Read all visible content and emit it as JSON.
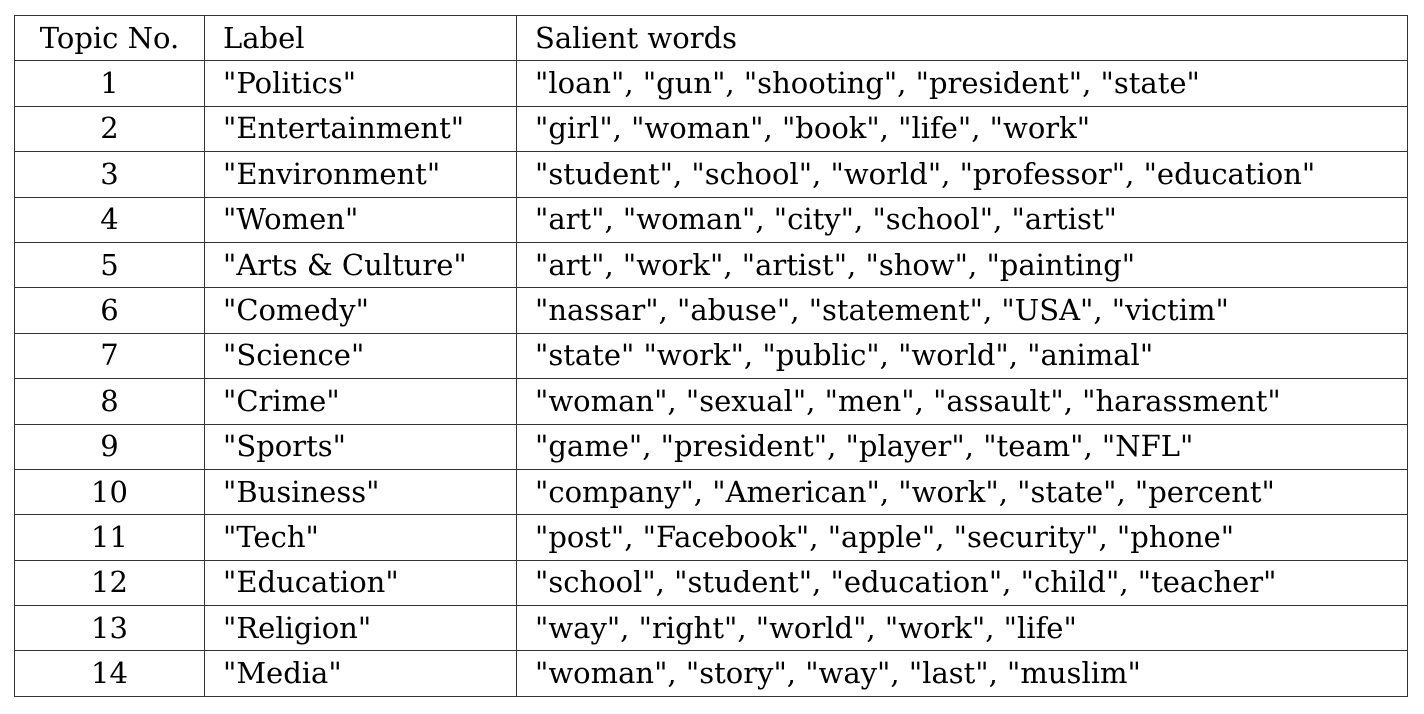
{
  "headers": [
    "Topic No.",
    "Label",
    "Salient words"
  ],
  "rows": [
    {
      "no": "1",
      "label": "\"Politics\"",
      "words": "\"loan\", \"gun\", \"shooting\", \"president\", \"state\""
    },
    {
      "no": "2",
      "label": "\"Entertainment\"",
      "words": "\"girl\", \"woman\", \"book\", \"life\", \"work\""
    },
    {
      "no": "3",
      "label": "\"Environment\"",
      "words": "\"student\", \"school\", \"world\", \"professor\", \"education\""
    },
    {
      "no": "4",
      "label": "\"Women\"",
      "words": "\"art\", \"woman\", \"city\", \"school\", \"artist\""
    },
    {
      "no": "5",
      "label": "\"Arts & Culture\"",
      "words": "\"art\", \"work\", \"artist\", \"show\", \"painting\""
    },
    {
      "no": "6",
      "label": "\"Comedy\"",
      "words": "\"nassar\", \"abuse\", \"statement\", \"USA\", \"victim\""
    },
    {
      "no": "7",
      "label": "\"Science\"",
      "words": "\"state\" \"work\", \"public\", \"world\", \"animal\""
    },
    {
      "no": "8",
      "label": "\"Crime\"",
      "words": "\"woman\", \"sexual\", \"men\", \"assault\", \"harassment\""
    },
    {
      "no": "9",
      "label": "\"Sports\"",
      "words": "\"game\", \"president\", \"player\", \"team\", \"NFL\""
    },
    {
      "no": "10",
      "label": "\"Business\"",
      "words": "\"company\", \"American\", \"work\", \"state\", \"percent\""
    },
    {
      "no": "11",
      "label": "\"Tech\"",
      "words": "\"post\", \"Facebook\", \"apple\", \"security\", \"phone\""
    },
    {
      "no": "12",
      "label": "\"Education\"",
      "words": "\"school\", \"student\", \"education\", \"child\", \"teacher\""
    },
    {
      "no": "13",
      "label": "\"Religion\"",
      "words": "\"way\", \"right\", \"world\", \"work\", \"life\""
    },
    {
      "no": "14",
      "label": "\"Media\"",
      "words": "\"woman\", \"story\", \"way\", \"last\", \"muslim\""
    }
  ]
}
